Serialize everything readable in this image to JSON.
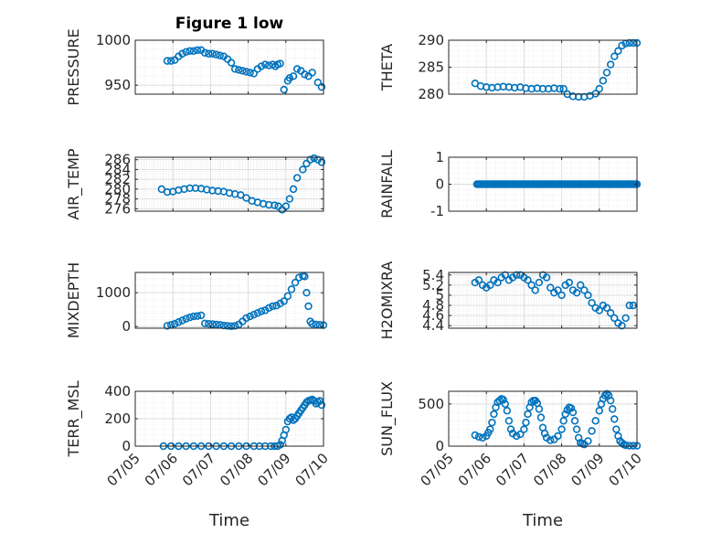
{
  "figure_title": "Figure 1 low",
  "x_axis_label": "Time",
  "marker_color": "#0072BD",
  "x_tick_labels": [
    "07/05",
    "07/06",
    "07/07",
    "07/08",
    "07/09",
    "07/10"
  ],
  "chart_data": [
    {
      "type": "scatter",
      "title": "Figure 1 low",
      "ylabel": "PRESSURE",
      "xlabel": "",
      "ylim": [
        940,
        1000
      ],
      "yticks": [
        950,
        1000
      ],
      "ytick_labels": [
        "950",
        "1000"
      ],
      "xlim": [
        0,
        5
      ],
      "x": [
        0.85,
        0.95,
        1.05,
        1.15,
        1.25,
        1.35,
        1.45,
        1.55,
        1.65,
        1.75,
        1.85,
        1.95,
        2.05,
        2.15,
        2.25,
        2.35,
        2.45,
        2.55,
        2.65,
        2.75,
        2.85,
        2.95,
        3.05,
        3.15,
        3.25,
        3.35,
        3.45,
        3.55,
        3.65,
        3.72,
        3.78,
        3.85,
        3.95,
        4.05,
        4.1,
        4.2,
        4.3,
        4.4,
        4.5,
        4.6,
        4.7,
        4.85,
        4.95
      ],
      "y": [
        977,
        977,
        978,
        982,
        985,
        987,
        988,
        988,
        989,
        989,
        986,
        985,
        985,
        984,
        983,
        982,
        979,
        975,
        968,
        967,
        966,
        965,
        964,
        963,
        968,
        971,
        973,
        972,
        973,
        971,
        973,
        974,
        945,
        955,
        958,
        960,
        968,
        966,
        962,
        960,
        964,
        953,
        948
      ]
    },
    {
      "type": "scatter",
      "ylabel": "THETA",
      "ylim": [
        280,
        290
      ],
      "yticks": [
        280,
        285,
        290
      ],
      "ytick_labels": [
        "280",
        "285",
        "290"
      ],
      "xlim": [
        0,
        5
      ],
      "x": [
        0.7,
        0.85,
        1.0,
        1.15,
        1.3,
        1.45,
        1.6,
        1.75,
        1.9,
        2.05,
        2.2,
        2.35,
        2.5,
        2.65,
        2.8,
        2.95,
        3.05,
        3.15,
        3.3,
        3.45,
        3.6,
        3.75,
        3.9,
        4.0,
        4.1,
        4.2,
        4.3,
        4.4,
        4.5,
        4.6,
        4.7,
        4.8,
        4.9,
        5.0
      ],
      "y": [
        282,
        281.5,
        281.3,
        281.2,
        281.3,
        281.4,
        281.3,
        281.2,
        281.3,
        281.1,
        281,
        281.1,
        281,
        281,
        281.1,
        281,
        281,
        280,
        279.6,
        279.5,
        279.5,
        279.7,
        280.1,
        281,
        282.5,
        284,
        285.5,
        287,
        288,
        289,
        289.4,
        289.5,
        289.5,
        289.5
      ]
    },
    {
      "type": "scatter",
      "ylabel": "AIR_TEMP",
      "ylim": [
        275.5,
        286.5
      ],
      "yticks": [
        276,
        278,
        280,
        282,
        284,
        286
      ],
      "ytick_labels": [
        "276",
        "278",
        "280",
        "282",
        "284",
        "286"
      ],
      "xlim": [
        0,
        5
      ],
      "x": [
        0.7,
        0.85,
        1.0,
        1.15,
        1.3,
        1.45,
        1.6,
        1.75,
        1.9,
        2.05,
        2.2,
        2.35,
        2.5,
        2.65,
        2.8,
        2.95,
        3.1,
        3.25,
        3.4,
        3.55,
        3.7,
        3.8,
        3.9,
        4.0,
        4.1,
        4.2,
        4.3,
        4.45,
        4.55,
        4.65,
        4.75,
        4.85,
        4.95
      ],
      "y": [
        280,
        279.4,
        279.5,
        279.8,
        280,
        280.2,
        280.2,
        280.1,
        279.9,
        279.7,
        279.6,
        279.5,
        279.2,
        279,
        278.8,
        278.2,
        277.6,
        277.3,
        277,
        276.8,
        276.7,
        276.5,
        275.8,
        276.5,
        278,
        280,
        282.3,
        284,
        285.2,
        286,
        286.3,
        286,
        285.5
      ]
    },
    {
      "type": "scatter",
      "ylabel": "RAINFALL",
      "ylim": [
        -1,
        1
      ],
      "yticks": [
        -1,
        0,
        1
      ],
      "ytick_labels": [
        "-1",
        "0",
        "1"
      ],
      "xlim": [
        0,
        5
      ],
      "x_range": [
        0.75,
        5.0
      ],
      "constant_y": 0,
      "point_count": 120
    },
    {
      "type": "scatter",
      "ylabel": "MIXDEPTH",
      "ylim": [
        -50,
        1600
      ],
      "yticks": [
        0,
        1000
      ],
      "ytick_labels": [
        "0",
        "1000"
      ],
      "xlim": [
        0,
        5
      ],
      "x": [
        0.85,
        0.95,
        1.05,
        1.15,
        1.25,
        1.35,
        1.45,
        1.55,
        1.65,
        1.75,
        1.85,
        1.95,
        2.05,
        2.15,
        2.25,
        2.35,
        2.45,
        2.55,
        2.65,
        2.75,
        2.85,
        2.95,
        3.05,
        3.15,
        3.25,
        3.35,
        3.45,
        3.55,
        3.65,
        3.75,
        3.85,
        3.95,
        4.05,
        4.15,
        4.25,
        4.35,
        4.45,
        4.5,
        4.55,
        4.6,
        4.65,
        4.7,
        4.8,
        4.9,
        5.0
      ],
      "y": [
        20,
        50,
        80,
        130,
        180,
        230,
        270,
        300,
        310,
        330,
        90,
        80,
        70,
        60,
        50,
        30,
        20,
        10,
        20,
        60,
        150,
        250,
        300,
        350,
        400,
        450,
        480,
        550,
        600,
        620,
        680,
        750,
        900,
        1100,
        1300,
        1450,
        1500,
        1480,
        1000,
        600,
        150,
        80,
        60,
        50,
        40
      ]
    },
    {
      "type": "scatter",
      "ylabel": "H2OMIXRA",
      "ylim": [
        4.35,
        5.45
      ],
      "yticks": [
        4.4,
        4.6,
        4.8,
        5,
        5.2,
        5.4
      ],
      "ytick_labels": [
        "4.4",
        "4.6",
        "4.8",
        "5",
        "5.2",
        "5.4"
      ],
      "xlim": [
        0,
        5
      ],
      "x": [
        0.7,
        0.8,
        0.9,
        1.0,
        1.1,
        1.2,
        1.3,
        1.4,
        1.5,
        1.6,
        1.7,
        1.8,
        1.9,
        2.0,
        2.1,
        2.2,
        2.3,
        2.4,
        2.5,
        2.6,
        2.7,
        2.8,
        2.9,
        3.0,
        3.1,
        3.2,
        3.3,
        3.4,
        3.5,
        3.6,
        3.7,
        3.8,
        3.9,
        4.0,
        4.1,
        4.2,
        4.3,
        4.4,
        4.5,
        4.6,
        4.7,
        4.8,
        4.9
      ],
      "y": [
        5.25,
        5.3,
        5.2,
        5.15,
        5.2,
        5.3,
        5.25,
        5.35,
        5.4,
        5.3,
        5.35,
        5.4,
        5.4,
        5.35,
        5.3,
        5.2,
        5.1,
        5.25,
        5.4,
        5.35,
        5.15,
        5.05,
        5.1,
        5.0,
        5.2,
        5.25,
        5.1,
        5.05,
        5.2,
        5.1,
        5.0,
        4.85,
        4.75,
        4.7,
        4.8,
        4.75,
        4.65,
        4.55,
        4.45,
        4.4,
        4.55,
        4.8,
        4.8
      ]
    },
    {
      "type": "scatter",
      "ylabel": "TERR_MSL",
      "ylim": [
        0,
        400
      ],
      "yticks": [
        0,
        200,
        400
      ],
      "ytick_labels": [
        "0",
        "200",
        "400"
      ],
      "xlim": [
        0,
        5
      ],
      "x": [
        0.75,
        0.95,
        1.15,
        1.35,
        1.55,
        1.75,
        1.95,
        2.15,
        2.35,
        2.55,
        2.75,
        2.95,
        3.15,
        3.3,
        3.45,
        3.6,
        3.7,
        3.78,
        3.85,
        3.9,
        3.95,
        4.0,
        4.05,
        4.1,
        4.15,
        4.2,
        4.25,
        4.3,
        4.35,
        4.4,
        4.45,
        4.5,
        4.55,
        4.6,
        4.65,
        4.7,
        4.75,
        4.8,
        4.85,
        4.9,
        4.95
      ],
      "y": [
        0,
        0,
        0,
        0,
        0,
        0,
        0,
        0,
        0,
        0,
        0,
        0,
        0,
        0,
        0,
        0,
        0,
        0,
        10,
        40,
        80,
        120,
        180,
        200,
        210,
        190,
        200,
        220,
        240,
        260,
        280,
        300,
        320,
        330,
        335,
        340,
        330,
        310,
        320,
        330,
        300
      ]
    },
    {
      "type": "scatter",
      "ylabel": "SUN_FLUX",
      "ylim": [
        0,
        650
      ],
      "yticks": [
        0,
        500
      ],
      "ytick_labels": [
        "0",
        "500"
      ],
      "xlim": [
        0,
        5
      ],
      "x": [
        0.7,
        0.8,
        0.9,
        1.0,
        1.05,
        1.1,
        1.15,
        1.2,
        1.25,
        1.3,
        1.35,
        1.4,
        1.45,
        1.5,
        1.55,
        1.6,
        1.65,
        1.7,
        1.8,
        1.9,
        2.0,
        2.05,
        2.1,
        2.15,
        2.2,
        2.25,
        2.3,
        2.35,
        2.4,
        2.45,
        2.5,
        2.55,
        2.6,
        2.7,
        2.8,
        2.9,
        3.0,
        3.05,
        3.1,
        3.15,
        3.2,
        3.25,
        3.3,
        3.35,
        3.4,
        3.45,
        3.5,
        3.55,
        3.6,
        3.7,
        3.8,
        3.9,
        4.0,
        4.05,
        4.1,
        4.15,
        4.2,
        4.25,
        4.3,
        4.35,
        4.4,
        4.45,
        4.5,
        4.55,
        4.6,
        4.65,
        4.7,
        4.8,
        4.9,
        5.0
      ],
      "y": [
        130,
        110,
        100,
        120,
        160,
        200,
        280,
        380,
        460,
        520,
        540,
        560,
        550,
        500,
        420,
        300,
        200,
        150,
        120,
        140,
        200,
        280,
        380,
        460,
        520,
        540,
        540,
        510,
        440,
        340,
        220,
        150,
        100,
        70,
        80,
        120,
        200,
        300,
        380,
        430,
        460,
        450,
        400,
        300,
        200,
        100,
        40,
        30,
        20,
        60,
        180,
        300,
        420,
        500,
        560,
        600,
        620,
        600,
        540,
        440,
        320,
        200,
        120,
        60,
        40,
        20,
        10,
        5,
        5,
        5
      ]
    }
  ]
}
